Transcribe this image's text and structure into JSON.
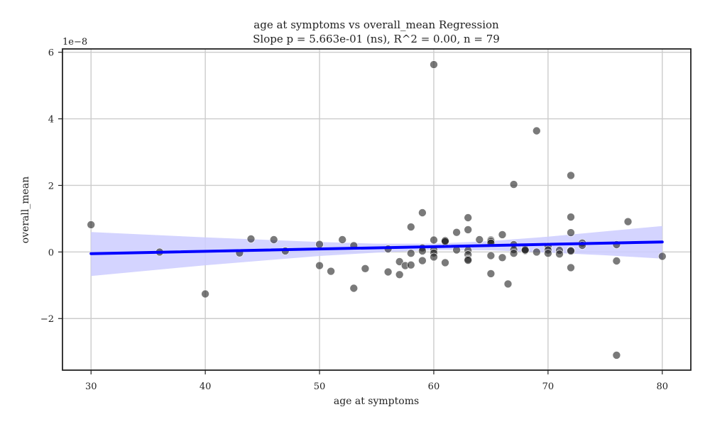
{
  "chart_data": {
    "type": "scatter",
    "title": "age at symptoms vs overall_mean Regression",
    "subtitle": "Slope p = 5.663e-01 (ns), R^2 = 0.00, n = 79",
    "xlabel": "age at symptoms",
    "ylabel": "overall_mean",
    "y_offset_label": "1e−8",
    "xlim": [
      27.5,
      82.5
    ],
    "ylim": [
      -3.55,
      6.1
    ],
    "x_ticks": [
      30,
      40,
      50,
      60,
      70,
      80
    ],
    "x_tick_labels": [
      "30",
      "40",
      "50",
      "60",
      "70",
      "80"
    ],
    "y_ticks": [
      -2,
      0,
      2,
      4,
      6
    ],
    "y_tick_labels": [
      "−2",
      "0",
      "2",
      "4",
      "6"
    ],
    "grid": true,
    "point_color": "#555555",
    "line_color": "#0000ff",
    "band_color": "#ccccff",
    "points": [
      {
        "x": 30,
        "y": 0.82
      },
      {
        "x": 36,
        "y": 0.0
      },
      {
        "x": 40,
        "y": -1.26
      },
      {
        "x": 43,
        "y": -0.03
      },
      {
        "x": 44,
        "y": 0.39
      },
      {
        "x": 46,
        "y": 0.37
      },
      {
        "x": 47,
        "y": 0.03
      },
      {
        "x": 50,
        "y": 0.23
      },
      {
        "x": 50,
        "y": -0.41
      },
      {
        "x": 51,
        "y": -0.58
      },
      {
        "x": 52,
        "y": 0.37
      },
      {
        "x": 53,
        "y": 0.19
      },
      {
        "x": 53,
        "y": -1.09
      },
      {
        "x": 54,
        "y": -0.5
      },
      {
        "x": 56,
        "y": 0.09
      },
      {
        "x": 56,
        "y": -0.6
      },
      {
        "x": 57,
        "y": -0.29
      },
      {
        "x": 57,
        "y": -0.68
      },
      {
        "x": 57.5,
        "y": -0.41
      },
      {
        "x": 58,
        "y": 0.75
      },
      {
        "x": 58,
        "y": -0.04
      },
      {
        "x": 58,
        "y": -0.39
      },
      {
        "x": 59,
        "y": 1.18
      },
      {
        "x": 59,
        "y": 0.12
      },
      {
        "x": 59,
        "y": 0.03
      },
      {
        "x": 59,
        "y": -0.26
      },
      {
        "x": 60,
        "y": 5.63
      },
      {
        "x": 60,
        "y": 0.36
      },
      {
        "x": 60,
        "y": 0.06
      },
      {
        "x": 60,
        "y": -0.03
      },
      {
        "x": 60,
        "y": -0.15
      },
      {
        "x": 61,
        "y": 0.35
      },
      {
        "x": 61,
        "y": 0.3
      },
      {
        "x": 61,
        "y": -0.32
      },
      {
        "x": 62,
        "y": 0.59
      },
      {
        "x": 62,
        "y": 0.06
      },
      {
        "x": 63,
        "y": 1.03
      },
      {
        "x": 63,
        "y": 0.67
      },
      {
        "x": 63,
        "y": 0.05
      },
      {
        "x": 63,
        "y": -0.08
      },
      {
        "x": 63,
        "y": -0.22
      },
      {
        "x": 63,
        "y": -0.25
      },
      {
        "x": 64,
        "y": 0.37
      },
      {
        "x": 65,
        "y": 0.36
      },
      {
        "x": 65,
        "y": 0.32
      },
      {
        "x": 65,
        "y": 0.27
      },
      {
        "x": 65,
        "y": -0.11
      },
      {
        "x": 65,
        "y": -0.65
      },
      {
        "x": 66,
        "y": 0.52
      },
      {
        "x": 66,
        "y": -0.17
      },
      {
        "x": 66.5,
        "y": -0.96
      },
      {
        "x": 67,
        "y": 2.03
      },
      {
        "x": 67,
        "y": 0.22
      },
      {
        "x": 67,
        "y": 0.07
      },
      {
        "x": 67,
        "y": -0.04
      },
      {
        "x": 68,
        "y": 0.09
      },
      {
        "x": 68,
        "y": 0.04
      },
      {
        "x": 69,
        "y": 3.64
      },
      {
        "x": 69,
        "y": 0.0
      },
      {
        "x": 70,
        "y": 0.17
      },
      {
        "x": 70,
        "y": 0.06
      },
      {
        "x": 70,
        "y": -0.04
      },
      {
        "x": 71,
        "y": 0.05
      },
      {
        "x": 71,
        "y": -0.06
      },
      {
        "x": 72,
        "y": 2.3
      },
      {
        "x": 72,
        "y": 1.05
      },
      {
        "x": 72,
        "y": 0.58
      },
      {
        "x": 72,
        "y": 0.05
      },
      {
        "x": 72,
        "y": 0.03
      },
      {
        "x": 72,
        "y": -0.47
      },
      {
        "x": 73,
        "y": 0.27
      },
      {
        "x": 73,
        "y": 0.2
      },
      {
        "x": 76,
        "y": 0.22
      },
      {
        "x": 76,
        "y": -0.27
      },
      {
        "x": 76,
        "y": -3.1
      },
      {
        "x": 77,
        "y": 0.91
      },
      {
        "x": 80,
        "y": -0.13
      },
      {
        "x": 61,
        "y": 0.33
      },
      {
        "x": 68,
        "y": 0.06
      }
    ],
    "regression": {
      "x": [
        30,
        80
      ],
      "y": [
        -0.05,
        0.3
      ]
    },
    "confidence_band": {
      "x": [
        30,
        40,
        50,
        55,
        60,
        65,
        70,
        75,
        80
      ],
      "upper": [
        0.6,
        0.44,
        0.3,
        0.25,
        0.25,
        0.33,
        0.46,
        0.62,
        0.78
      ],
      "lower": [
        -0.72,
        -0.4,
        -0.12,
        -0.02,
        0.06,
        0.05,
        -0.02,
        -0.1,
        -0.2
      ]
    }
  }
}
